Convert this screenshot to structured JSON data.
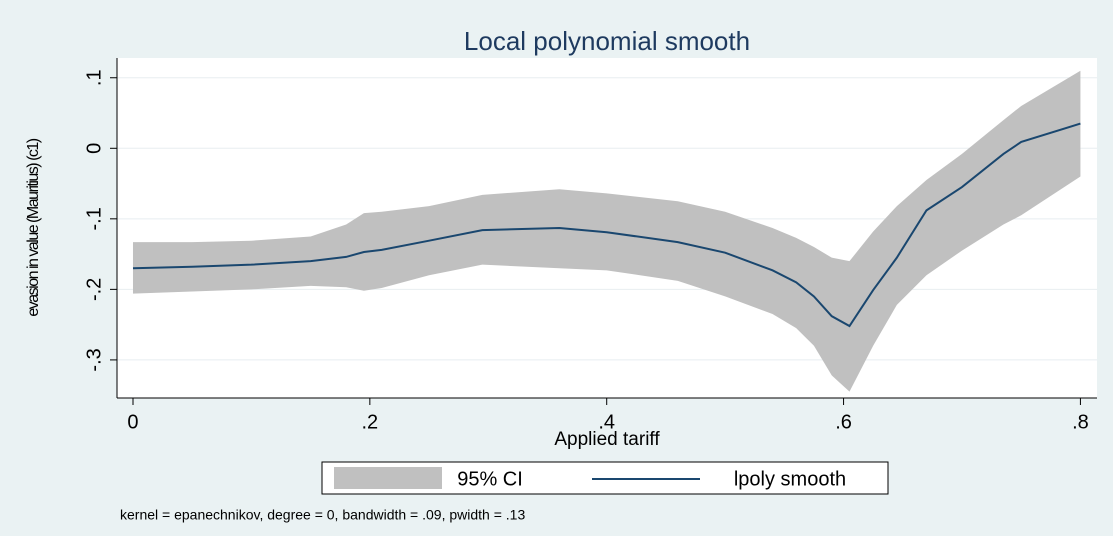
{
  "chart_data": {
    "type": "line",
    "title": "Local polynomial smooth",
    "x_label": "Applied tariff",
    "y_label": "evasion in value (Mauritius) (c1)",
    "note": "kernel = epanechnikov, degree = 0, bandwidth = .09, pwidth = .13",
    "x": [
      0,
      0.05,
      0.1,
      0.15,
      0.18,
      0.195,
      0.21,
      0.25,
      0.295,
      0.36,
      0.4,
      0.46,
      0.5,
      0.54,
      0.56,
      0.575,
      0.59,
      0.605,
      0.625,
      0.645,
      0.67,
      0.7,
      0.735,
      0.75,
      0.8
    ],
    "series": [
      {
        "name": "95% CI",
        "color": "#c0c0c0",
        "upper": [
          -0.133,
          -0.133,
          -0.131,
          -0.125,
          -0.108,
          -0.092,
          -0.09,
          -0.082,
          -0.066,
          -0.058,
          -0.064,
          -0.075,
          -0.09,
          -0.113,
          -0.127,
          -0.14,
          -0.155,
          -0.16,
          -0.118,
          -0.082,
          -0.045,
          -0.008,
          0.04,
          0.06,
          0.11
        ],
        "lower": [
          -0.206,
          -0.203,
          -0.2,
          -0.195,
          -0.197,
          -0.202,
          -0.198,
          -0.18,
          -0.165,
          -0.17,
          -0.173,
          -0.188,
          -0.21,
          -0.235,
          -0.255,
          -0.28,
          -0.322,
          -0.345,
          -0.28,
          -0.222,
          -0.18,
          -0.145,
          -0.108,
          -0.095,
          -0.04
        ]
      },
      {
        "name": "lpoly smooth",
        "color": "#1a476f",
        "values": [
          -0.17,
          -0.168,
          -0.165,
          -0.16,
          -0.154,
          -0.147,
          -0.144,
          -0.131,
          -0.116,
          -0.113,
          -0.119,
          -0.133,
          -0.148,
          -0.173,
          -0.19,
          -0.21,
          -0.238,
          -0.252,
          -0.201,
          -0.155,
          -0.088,
          -0.055,
          -0.008,
          0.009,
          0.035
        ]
      }
    ],
    "xlim": [
      -0.0135,
      0.814
    ],
    "ylim": [
      -0.354,
      0.128
    ],
    "xticks": [
      0,
      {
        "value": 0.2,
        "label": ".2"
      },
      {
        "value": 0.4,
        "label": ".4"
      },
      {
        "value": 0.6,
        "label": ".6"
      },
      {
        "value": 0.8,
        "label": ".8"
      }
    ],
    "yticks": [
      {
        "value": 0.1,
        "label": ".1"
      },
      0,
      {
        "value": -0.1,
        "label": "-.1"
      },
      {
        "value": -0.2,
        "label": "-.2"
      },
      {
        "value": -0.3,
        "label": "-.3"
      }
    ],
    "grid": true
  }
}
